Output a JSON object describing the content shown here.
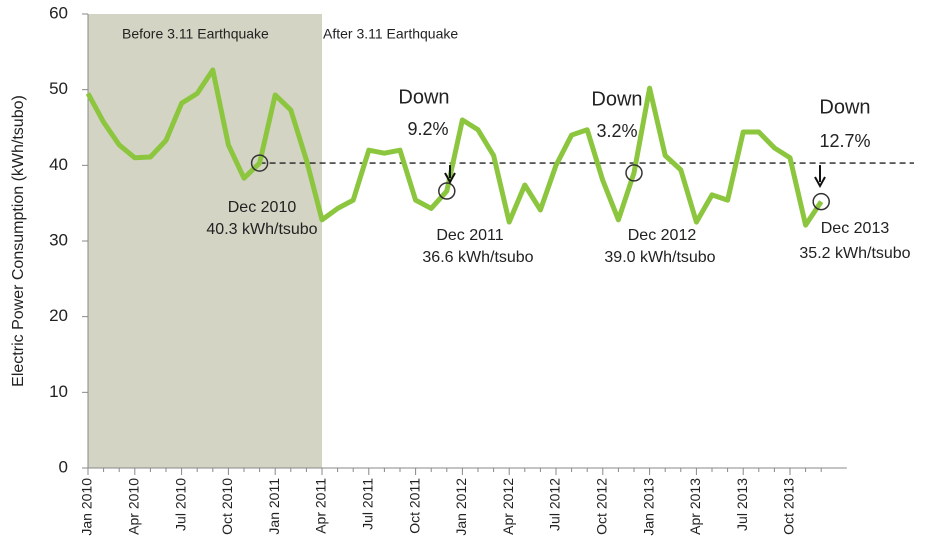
{
  "chart_data": {
    "type": "line",
    "y_label": "Electric Power Consumption (kWh/tsubo)",
    "categories": [
      "Jan 2010",
      null,
      null,
      "Apr 2010",
      null,
      null,
      "Jul 2010",
      null,
      null,
      "Oct 2010",
      null,
      null,
      "Jan 2011",
      null,
      null,
      "Apr 2011",
      null,
      null,
      "Jul 2011",
      null,
      null,
      "Oct 2011",
      null,
      null,
      "Jan 2012",
      null,
      null,
      "Apr 2012",
      null,
      null,
      "Jul 2012",
      null,
      null,
      "Oct 2012",
      null,
      null,
      "Jan 2013",
      null,
      null,
      "Apr 2013",
      null,
      null,
      "Jul 2013",
      null,
      null,
      "Oct 2013",
      null,
      null
    ],
    "series": [
      {
        "color": "#8cc63f",
        "values": [
          49.5,
          45.7,
          42.7,
          41.0,
          41.1,
          43.3,
          48.2,
          49.5,
          52.6,
          42.7,
          38.3,
          40.3,
          49.3,
          47.3,
          40.7,
          32.8,
          34.3,
          35.4,
          42.0,
          41.6,
          42.0,
          35.4,
          34.3,
          36.6,
          46.0,
          44.7,
          41.3,
          32.5,
          37.4,
          34.1,
          40.0,
          44.0,
          44.7,
          38.0,
          32.8,
          39.0,
          50.2,
          41.3,
          39.4,
          32.5,
          36.1,
          35.4,
          44.4,
          44.4,
          42.3,
          41.0,
          32.1,
          35.2
        ]
      }
    ],
    "reference_value": 40.3,
    "ylim": [
      0,
      60
    ],
    "yticks": [
      0,
      10,
      20,
      30,
      40,
      50,
      60
    ],
    "annotations": [
      "Before 3.11 Earthquake",
      "After 3.11 Earthquake",
      "Down",
      "9.2%",
      "Down",
      "3.2%",
      "Down",
      "12.7%",
      "Dec 2010",
      "40.3 kWh/tsubo",
      "Dec 2011",
      "36.6 kWh/tsubo",
      "Dec 2012",
      "39.0 kWh/tsubo",
      "Dec 2013",
      "35.2 kWh/tsubo"
    ]
  }
}
